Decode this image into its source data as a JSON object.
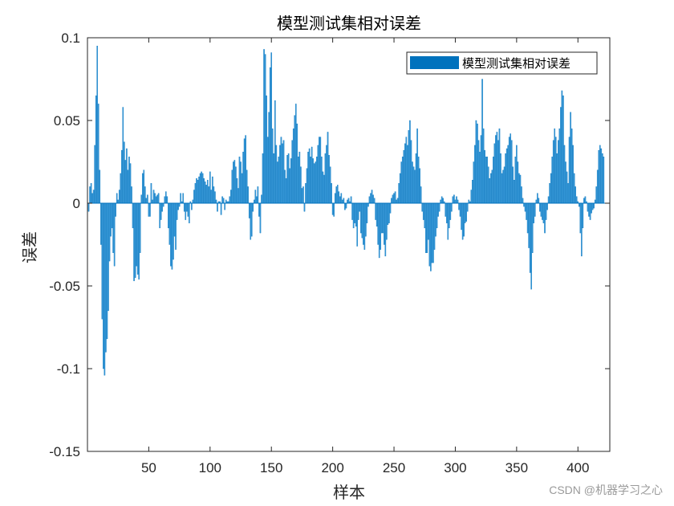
{
  "watermark": "CSDN @机器学习之心",
  "colors": {
    "bar": "#0072BD",
    "bar_light": "#3a9ad9",
    "axis": "#262626"
  },
  "chart_data": {
    "type": "bar",
    "title": "模型测试集相对误差",
    "xlabel": "样本",
    "ylabel": "误差",
    "legend": {
      "entries": [
        "模型测试集相对误差"
      ],
      "placement": "top-right"
    },
    "xlim": [
      0,
      426
    ],
    "ylim": [
      -0.15,
      0.1
    ],
    "xticks": [
      50,
      100,
      150,
      200,
      250,
      300,
      350,
      400
    ],
    "yticks": [
      0.1,
      0.05,
      0,
      -0.05,
      -0.1,
      -0.15
    ],
    "ytick_labels": [
      "0.1",
      "0.05",
      "0",
      "-0.05",
      "-0.1",
      "-0.15"
    ],
    "grid": false,
    "series": [
      {
        "x_start": 1,
        "values": [
          -0.005,
          0.01,
          0.012,
          0.006,
          0.008,
          0.035,
          0.065,
          0.095,
          0.06,
          0.02,
          -0.025,
          -0.07,
          -0.1,
          -0.104,
          -0.09,
          -0.082,
          -0.065,
          -0.035,
          -0.02,
          -0.015,
          -0.03,
          -0.038,
          -0.008,
          0.006,
          0.002,
          0.008,
          0.018,
          0.032,
          0.058,
          0.037,
          0.026,
          0.033,
          0.02,
          0.028,
          0.024,
          0.01,
          -0.015,
          -0.047,
          -0.045,
          -0.038,
          -0.043,
          -0.046,
          -0.03,
          0.005,
          0.018,
          0.02,
          0.01,
          0.003,
          0.005,
          -0.008,
          -0.008,
          0.012,
          0.002,
          0.008,
          0.006,
          0.004,
          0.005,
          0.006,
          -0.015,
          -0.01,
          -0.005,
          -0.002,
          0.004,
          0.007,
          0.004,
          -0.015,
          -0.025,
          -0.038,
          -0.04,
          -0.034,
          -0.02,
          -0.028,
          -0.01,
          -0.004,
          -0.002,
          0.006,
          0.001,
          0.006,
          -0.005,
          -0.01,
          -0.005,
          -0.008,
          -0.012,
          0.001,
          -0.004,
          0.002,
          0.008,
          0.012,
          0.015,
          0.014,
          0.016,
          0.018,
          0.019,
          0.018,
          0.015,
          0.013,
          0.011,
          0.014,
          0.01,
          0.019,
          0.008,
          0.016,
          0.01,
          0.007,
          0.002,
          -0.005,
          0.001,
          0.001,
          -0.007,
          0.004,
          0.003,
          -0.004,
          0.002,
          0.001,
          0.001,
          0.004,
          0.008,
          0.02,
          0.025,
          0.026,
          0.022,
          0.015,
          0.009,
          0.028,
          0.025,
          0.018,
          0.031,
          0.039,
          0.041,
          0.02,
          0.01,
          -0.009,
          -0.022,
          -0.02,
          -0.005,
          0.002,
          0.008,
          0.004,
          0.01,
          -0.008,
          -0.018,
          0.005,
          0.03,
          0.093,
          0.09,
          0.065,
          0.04,
          0.055,
          0.082,
          0.091,
          0.045,
          0.03,
          0.062,
          0.035,
          0.025,
          0.028,
          0.035,
          0.04,
          0.036,
          0.038,
          0.02,
          0.015,
          0.029,
          0.03,
          0.021,
          0.027,
          0.038,
          0.045,
          0.053,
          0.06,
          0.048,
          0.028,
          0.031,
          0.022,
          0.009,
          0.01,
          -0.005,
          0.012,
          0.021,
          0.031,
          0.033,
          0.028,
          0.034,
          0.027,
          0.024,
          0.025,
          0.028,
          0.035,
          0.04,
          0.04,
          0.028,
          0.019,
          0.017,
          0.03,
          0.035,
          0.043,
          0.029,
          0.022,
          0.012,
          -0.007,
          -0.008,
          0.006,
          0.01,
          0.011,
          0.007,
          0.004,
          0.006,
          0.002,
          0.003,
          -0.004,
          -0.003,
          0.002,
          0.003,
          0.001,
          0.004,
          -0.01,
          -0.015,
          -0.012,
          -0.014,
          -0.026,
          -0.01,
          -0.005,
          -0.018,
          -0.021,
          -0.025,
          -0.028,
          -0.02,
          -0.012,
          -0.002,
          0.004,
          0.006,
          0.008,
          0.005,
          0.003,
          -0.01,
          -0.014,
          -0.025,
          -0.033,
          -0.028,
          -0.018,
          -0.018,
          -0.025,
          -0.032,
          -0.022,
          -0.013,
          -0.012,
          -0.006,
          0.003,
          0.005,
          0.006,
          0.007,
          0.002,
          0.003,
          0.012,
          0.018,
          0.025,
          0.028,
          0.032,
          0.036,
          0.04,
          0.035,
          0.044,
          0.05,
          0.038,
          0.025,
          0.022,
          0.02,
          0.03,
          0.045,
          0.028,
          0.021,
          0.01,
          -0.005,
          -0.01,
          -0.015,
          -0.03,
          -0.03,
          -0.022,
          -0.038,
          -0.041,
          -0.036,
          -0.036,
          -0.028,
          -0.02,
          -0.015,
          -0.008,
          -0.005,
          0.002,
          0.004,
          0.003,
          0.001,
          -0.008,
          -0.012,
          -0.022,
          -0.015,
          -0.01,
          -0.005,
          0.004,
          0.005,
          0.002,
          0.004,
          0.002,
          -0.004,
          -0.008,
          -0.016,
          -0.022,
          -0.02,
          -0.012,
          -0.011,
          -0.005,
          0.002,
          0.001,
          0.008,
          0.014,
          0.025,
          0.035,
          0.05,
          0.048,
          0.038,
          0.031,
          0.041,
          0.075,
          0.045,
          0.032,
          0.028,
          0.028,
          0.022,
          0.015,
          0.018,
          0.02,
          0.028,
          0.036,
          0.041,
          0.043,
          0.038,
          0.045,
          0.03,
          0.018,
          0.02,
          0.022,
          0.03,
          0.033,
          0.035,
          0.04,
          0.042,
          0.038,
          0.022,
          0.014,
          0.028,
          0.035,
          0.025,
          0.018,
          0.017,
          0.01,
          0.003,
          -0.002,
          -0.005,
          -0.01,
          -0.018,
          -0.027,
          -0.042,
          -0.052,
          -0.03,
          -0.012,
          -0.008,
          0.002,
          0.006,
          0.003,
          -0.005,
          -0.008,
          -0.01,
          -0.012,
          -0.018,
          -0.01,
          -0.004,
          0.004,
          0.012,
          0.018,
          0.028,
          0.038,
          0.045,
          0.04,
          0.03,
          0.038,
          0.045,
          0.058,
          0.068,
          0.065,
          0.035,
          0.025,
          0.019,
          0.012,
          0.04,
          0.055,
          0.045,
          0.035,
          0.018,
          0.01,
          0.004,
          0.001,
          -0.002,
          -0.018,
          -0.032,
          -0.015,
          0.003,
          0.004,
          0.001,
          -0.005,
          -0.008,
          -0.01,
          -0.006,
          -0.004,
          -0.003,
          0.002,
          0.01,
          0.02,
          0.032,
          0.035,
          0.033,
          0.03,
          0.028
        ]
      }
    ]
  }
}
